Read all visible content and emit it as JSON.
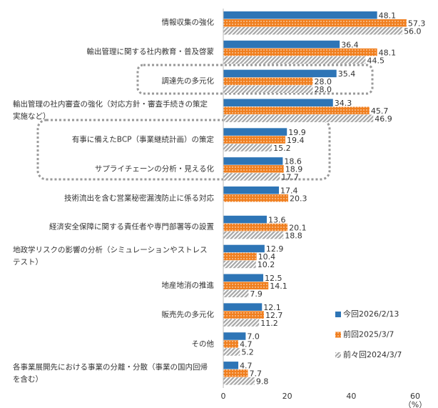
{
  "chart_data": {
    "type": "bar",
    "orientation": "horizontal",
    "categories": [
      "情報収集の強化",
      "輸出管理に関する社内教育・普及啓蒙",
      "調達先の多元化",
      "輸出管理の社内審査の強化（対応方針・審査手続きの策定実施など）",
      "有事に備えたBCP（事業継続計画）の策定",
      "サプライチェーンの分析・見える化",
      "技術流出を含む営業秘密漏洩防止に係る対応",
      "経済安全保障に関する責任者や専門部署等の設置",
      "地政学リスクの影響の分析（シミュレーションやストレステスト）",
      "地産地消の推進",
      "販売先の多元化",
      "その他",
      "各事業展開先における事業の分離・分散（事業の国内回帰を含む）"
    ],
    "series": [
      {
        "name": "今回2026/2/13",
        "color": "#2e75b6",
        "values": [
          48.1,
          36.4,
          35.4,
          34.3,
          19.9,
          18.6,
          17.4,
          13.6,
          12.9,
          12.5,
          12.1,
          7.0,
          4.7
        ],
        "value_labels": [
          "48.1",
          "36.4",
          "35.4",
          "34.3",
          "19.9",
          "18.6",
          "17.4",
          "13.6",
          "12.9",
          "12.5",
          "12.1",
          "7.0",
          "4.7"
        ]
      },
      {
        "name": "前回2025/3/7",
        "color": "#f07f1f",
        "values": [
          57.3,
          48.1,
          28.0,
          45.7,
          19.4,
          18.9,
          20.3,
          20.1,
          10.4,
          14.1,
          12.7,
          4.7,
          7.7
        ],
        "value_labels": [
          "57.3",
          "48.1",
          "28.0",
          "45.7",
          "19.4",
          "18.9",
          "20.3",
          "20.1",
          "10.4",
          "14.1",
          "12.7",
          "4.7",
          "7.7"
        ]
      },
      {
        "name": "前々回2024/3/7",
        "color": "#a6a6a6",
        "values": [
          56.0,
          44.5,
          28.0,
          46.9,
          15.2,
          17.7,
          null,
          18.8,
          10.2,
          7.9,
          11.2,
          5.2,
          9.8
        ],
        "value_labels": [
          "56.0",
          "44.5",
          "28.0",
          "46.9",
          "15.2",
          "17.7",
          null,
          "18.8",
          "10.2",
          "7.9",
          "11.2",
          "5.2",
          "9.8"
        ]
      }
    ],
    "xlim": [
      0,
      60
    ],
    "xticks": [
      0,
      20,
      40,
      60
    ],
    "x_unit": "（%）"
  }
}
